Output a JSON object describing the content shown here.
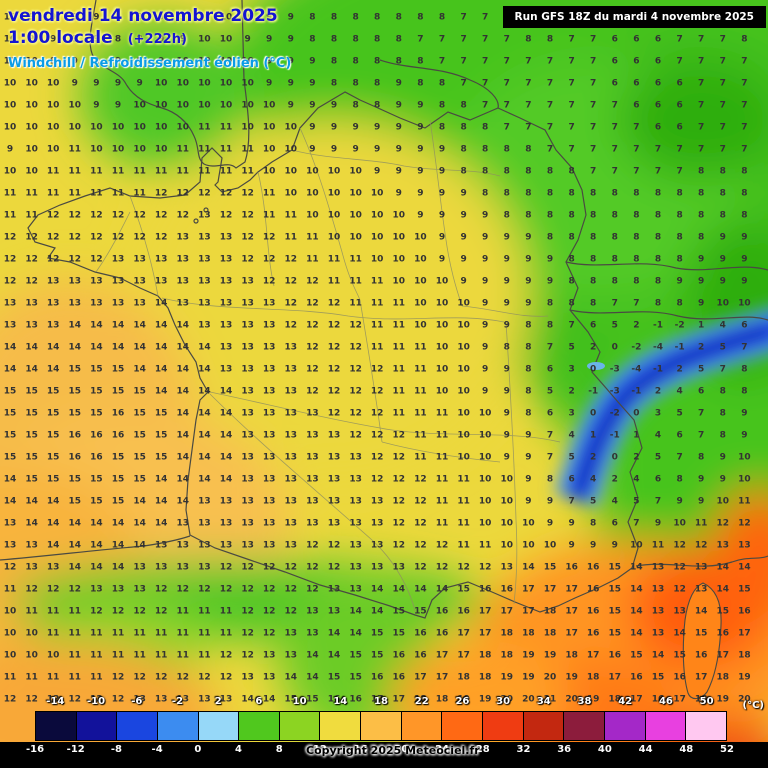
{
  "header": {
    "date_line": "vendredi 14 novembre 2025",
    "time_line": "1:00 locale",
    "offset": "(+222h)",
    "param_line": "Windchill / Refroidissement éolien (°C)",
    "run_info": "Run GFS 18Z du mardi 4 novembre 2025"
  },
  "footer": {
    "copyright": "Copyright 2025 Meteociel.fr",
    "unit_label": "(°C)"
  },
  "colorbar": {
    "top_labels": [
      "-14",
      "-10",
      "-6",
      "-2",
      "2",
      "6",
      "10",
      "14",
      "18",
      "22",
      "26",
      "30",
      "34",
      "38",
      "42",
      "46",
      "50"
    ],
    "bottom_labels": [
      "-16",
      "-12",
      "-8",
      "-4",
      "0",
      "4",
      "8",
      "12",
      "16",
      "20",
      "24",
      "28",
      "32",
      "36",
      "40",
      "44",
      "48",
      "52"
    ],
    "colors": [
      "#0a0a3c",
      "#12129b",
      "#1a46e0",
      "#3c8cf0",
      "#96d8f8",
      "#50c81e",
      "#8cd422",
      "#f0dc3e",
      "#fcbe46",
      "#ff9628",
      "#ff6914",
      "#ef3c12",
      "#c32810",
      "#8c1c3c",
      "#a428c8",
      "#e840e0",
      "#ffc8f0"
    ]
  },
  "grid": {
    "rows": [
      "10 9 9 9 9 9 8 9 9 10 10 10 9 9 8 8 8 8 8 8 8 7 7 8 8 8 7 7 7 6 7 7 7 7 8",
      "10 9 9 9 9 8 8 9 9 10 10 9 9 9 8 8 8 8 8 7 7 7 7 7 8 8 7 7 6 6 6 7 7 7 8",
      "10 10 9 9 9 9 9 9 10 10 10 10 9 9 9 8 8 8 8 8 7 7 7 7 7 7 7 7 6 6 6 7 7 7 7",
      "10 10 10 9 9 9 9 10 10 10 10 10 9 9 9 8 8 8 9 8 8 7 7 7 7 7 7 7 6 6 6 6 7 7 7",
      "10 10 10 10 9 9 10 10 10 10 10 10 10 9 9 9 8 8 9 9 8 8 7 7 7 7 7 7 7 6 6 6 7 7 7",
      "10 10 10 10 10 10 10 10 10 11 11 10 10 10 9 9 9 9 9 9 8 8 8 7 7 7 7 7 7 7 6 6 7 7 7",
      "9 10 10 11 10 10 10 10 11 11 11 11 10 10 9 9 9 9 9 9 9 8 8 8 8 7 7 7 7 7 7 7 7 7 7",
      "10 10 11 11 11 11 11 11 11 11 11 11 10 10 10 10 10 9 9 9 9 8 8 8 8 8 8 7 7 7 7 7 8 8 8",
      "11 11 11 11 11 11 11 12 12 12 12 12 11 10 10 10 10 10 9 9 9 9 8 8 8 8 8 8 8 8 8 8 8 8 8",
      "11 11 12 12 12 12 12 12 12 13 12 12 11 11 10 10 10 10 10 9 9 9 9 8 8 8 8 8 8 8 8 8 8 8 8",
      "12 12 12 12 12 12 12 12 13 13 13 12 12 11 11 10 10 10 10 10 9 9 9 9 9 8 8 8 8 8 8 8 8 9 9",
      "12 12 12 12 12 13 13 13 13 13 13 12 12 12 11 11 11 10 10 10 9 9 9 9 9 9 8 8 8 8 8 8 9 9 9",
      "12 12 13 13 13 13 13 13 13 13 13 13 12 12 12 11 11 11 10 10 10 9 9 9 9 9 8 8 8 8 8 9 9 9 9",
      "13 13 13 13 13 13 13 14 13 13 13 13 13 12 12 12 11 11 11 10 10 10 9 9 9 8 8 8 7 7 8 8 9 10 10",
      "13 13 13 14 14 14 14 14 14 13 13 13 13 12 12 12 12 11 11 10 10 10 9 9 8 8 7 6 5 2 -1 -2 1 4 6",
      "14 14 14 14 14 14 14 14 14 14 13 13 13 13 12 12 12 11 11 11 10 10 9 8 8 7 5 2 0 -2 -4 -1 2 5 7",
      "14 14 14 15 15 15 14 14 14 14 13 13 13 13 12 12 12 12 11 11 10 10 9 9 8 6 3 0 -3 -4 -1 2 5 7 8",
      "15 15 15 15 15 15 15 14 14 14 14 13 13 13 12 12 12 12 11 11 10 10 9 9 8 5 2 -1 -3 -1 2 4 6 8 8",
      "15 15 15 15 15 16 15 15 14 14 14 13 13 13 13 12 12 12 11 11 11 10 10 9 8 6 3 0 -2 0 3 5 7 8 9",
      "15 15 15 16 16 16 15 15 14 14 14 13 13 13 13 13 12 12 12 11 11 10 10 9 9 7 4 1 -1 1 4 6 7 8 9",
      "15 15 15 16 16 15 15 15 14 14 14 13 13 13 13 13 13 12 12 11 11 10 10 9 9 7 5 2 0 2 5 7 8 9 10",
      "14 15 15 15 15 15 15 14 14 14 14 13 13 13 13 13 13 12 12 12 11 11 10 10 9 8 6 4 2 4 6 8 9 9 10",
      "14 14 14 15 15 15 14 14 14 13 13 13 13 13 13 13 13 13 12 12 11 11 10 10 9 9 7 5 4 5 7 9 9 10 11",
      "13 14 14 14 14 14 14 14 13 13 13 13 13 13 13 13 13 13 12 12 11 11 10 10 10 9 9 8 6 7 9 10 11 12 12",
      "13 13 14 14 14 14 14 13 13 13 13 13 13 13 12 12 13 13 12 12 12 11 11 10 10 10 9 9 9 10 11 12 12 13 13",
      "12 13 13 14 14 14 13 13 13 13 12 12 12 12 12 12 13 13 13 12 12 12 12 13 14 15 16 16 15 14 13 12 13 14 14",
      "11 12 12 12 13 13 13 12 12 12 12 12 12 12 12 13 13 14 14 14 14 15 16 16 17 17 17 16 15 14 13 12 13 14 15",
      "10 11 11 11 12 12 12 12 11 11 11 12 12 12 13 13 14 14 15 15 16 16 17 17 17 18 17 16 15 14 13 13 14 15 16",
      "10 10 11 11 11 11 11 11 11 11 11 12 12 13 13 14 14 15 15 16 16 17 17 18 18 18 17 16 15 14 13 14 15 16 17",
      "10 10 10 11 11 11 11 11 11 11 12 12 13 13 14 14 15 15 16 16 17 17 18 18 19 19 18 17 16 15 14 15 16 17 18",
      "11 11 11 11 11 12 12 12 12 12 12 13 13 14 14 15 15 16 16 17 17 18 18 19 19 20 19 18 17 16 15 16 17 18 19",
      "12 12 12 12 12 12 13 13 13 13 13 14 14 15 15 16 16 17 17 18 18 19 19 20 20 21 20 19 18 17 16 17 18 19 20"
    ]
  }
}
